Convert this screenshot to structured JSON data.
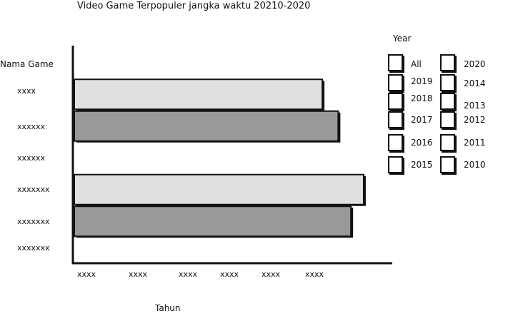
{
  "chart_data": {
    "type": "bar",
    "orientation": "horizontal",
    "title": "Video Game Terpopuler jangka waktu 20210-2020",
    "ylabel": "Nama Game",
    "xlabel": "Tahun",
    "categories": [
      "xxxx",
      "xxxxxx",
      "xxxxxx",
      "xxxxxxx",
      "xxxxxxx",
      "xxxxxxx"
    ],
    "x_ticks": [
      "xxxx",
      "xxxx",
      "xxxx",
      "xxxx",
      "xxxx",
      "xxxx"
    ],
    "bars": [
      {
        "category": "xxxx",
        "value": 0.78,
        "fill": "#e0e0e0"
      },
      {
        "category": "xxxxxx",
        "value": 0.83,
        "fill": "#999999"
      },
      {
        "category": "xxxxxx",
        "value": null,
        "fill": null
      },
      {
        "category": "xxxxxxx",
        "value": 0.91,
        "fill": "#e0e0e0"
      },
      {
        "category": "xxxxxxx",
        "value": 0.87,
        "fill": "#999999"
      },
      {
        "category": "xxxxxxx",
        "value": null,
        "fill": null
      }
    ],
    "grid": false
  },
  "legend": {
    "title": "Year",
    "options": [
      "All",
      "2020",
      "2019",
      "2014",
      "2018",
      "2013",
      "2017",
      "2012",
      "2016",
      "2011",
      "2015",
      "2010"
    ]
  }
}
